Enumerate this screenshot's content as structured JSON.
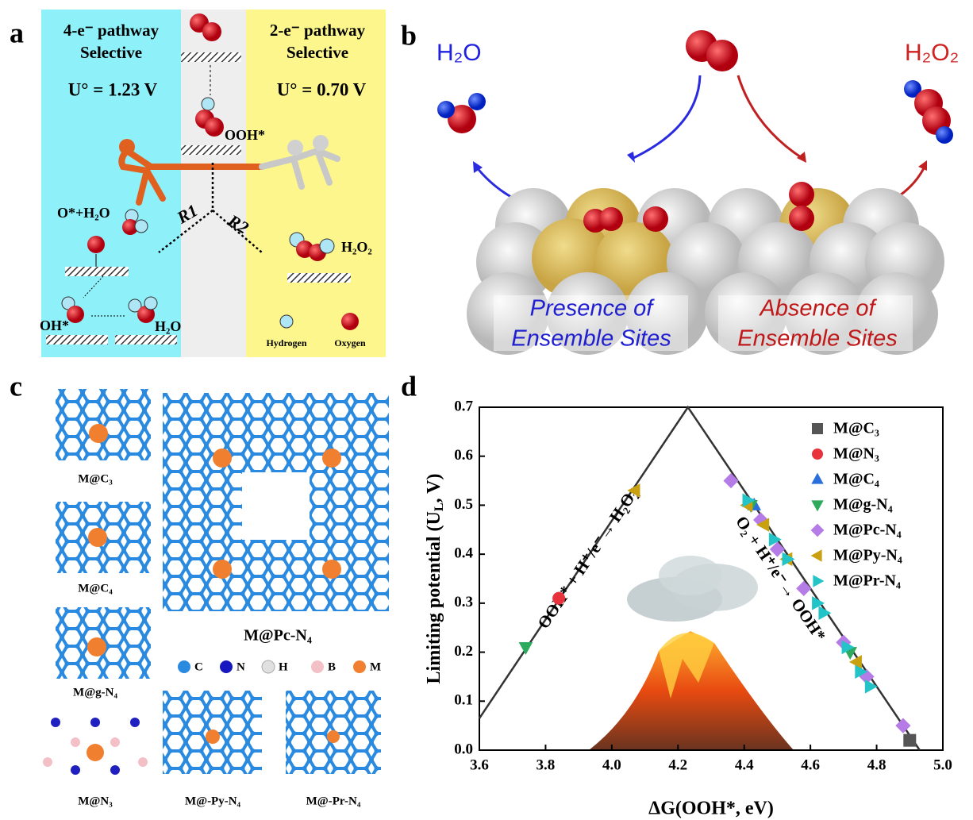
{
  "panel_a": {
    "letter": "a",
    "left_title": [
      "4-e⁻ pathway",
      "Selective"
    ],
    "left_potential": "U° = 1.23 V",
    "right_title": [
      "2-e⁻ pathway",
      "Selective"
    ],
    "right_potential": "U° = 0.70 V",
    "labels": [
      "OOH*",
      "O*+H₂O",
      "R1",
      "R2",
      "H₂O₂",
      "OH*",
      "H₂O"
    ],
    "legend": [
      "Hydrogen",
      "Oxygen"
    ]
  },
  "panel_b": {
    "letter": "b",
    "left_product": "H₂O",
    "right_product": "H₂O₂",
    "left_caption": [
      "Presence of",
      "Ensemble Sites"
    ],
    "right_caption": [
      "Absence of",
      "Ensemble Sites"
    ]
  },
  "panel_c": {
    "letter": "c",
    "structures": [
      "M@C₃",
      "M@C₄",
      "M@g-N₄",
      "M@N₃",
      "M@Pc-N₄",
      "M@-Py-N₄",
      "M@-Pr-N₄"
    ],
    "atoms": [
      "C",
      "N",
      "H",
      "B",
      "M"
    ]
  },
  "chart_data": {
    "type": "scatter",
    "letter": "d",
    "x_label": "ΔG(OOH*, eV)",
    "y_label": [
      "Limiting potential (U",
      "L",
      ", V)"
    ],
    "xlim": [
      3.6,
      5.0
    ],
    "ylim": [
      0,
      0.7
    ],
    "xticks": [
      3.6,
      3.8,
      {
        "value": 4,
        "label": "4.0"
      },
      4.2,
      4.4,
      4.6,
      4.8,
      {
        "value": 5,
        "label": "5.0"
      }
    ],
    "yticks": [
      {
        "value": 0,
        "label": "0.0"
      },
      0.1,
      0.2,
      0.3,
      0.4,
      0.5,
      0.6,
      0.7
    ],
    "volcano_line": {
      "x": [
        3.6,
        4.23,
        4.93
      ],
      "values": [
        0.065,
        0.7,
        0
      ]
    },
    "annotations": [
      "OOH* + H⁺/e⁻→ H₂O₂",
      "O₂ + H⁺/e⁻→ OOH*"
    ],
    "legend": "upper right",
    "series": [
      {
        "name": "M@C₃",
        "color": "#555555",
        "marker": "square",
        "x": [
          4.9
        ],
        "values": [
          0.02
        ]
      },
      {
        "name": "M@N₃",
        "color": "#e8323c",
        "marker": "circle",
        "x": [
          3.84
        ],
        "values": [
          0.31
        ]
      },
      {
        "name": "M@C₄",
        "color": "#2a6fdb",
        "marker": "triangle-up",
        "x": [
          4.43
        ],
        "values": [
          0.5
        ]
      },
      {
        "name": "M@g-N₄",
        "color": "#2eaa5c",
        "marker": "triangle-down",
        "x": [
          3.74,
          4.42,
          4.72
        ],
        "values": [
          0.21,
          0.5,
          0.2
        ]
      },
      {
        "name": "M@Pc-N₄",
        "color": "#b57be6",
        "marker": "diamond",
        "x": [
          4.36,
          4.45,
          4.5,
          4.58,
          4.7,
          4.77,
          4.88
        ],
        "values": [
          0.55,
          0.47,
          0.41,
          0.33,
          0.22,
          0.15,
          0.05
        ]
      },
      {
        "name": "M@Py-N₄",
        "color": "#c8a010",
        "marker": "triangle-left",
        "x": [
          4.07,
          4.41,
          4.46,
          4.53,
          4.74
        ],
        "values": [
          0.53,
          0.5,
          0.46,
          0.39,
          0.18
        ]
      },
      {
        "name": "M@Pr-N₄",
        "color": "#22c4c8",
        "marker": "triangle-right",
        "x": [
          4.41,
          4.49,
          4.53,
          4.62,
          4.64,
          4.71,
          4.75,
          4.78
        ],
        "values": [
          0.51,
          0.43,
          0.39,
          0.3,
          0.28,
          0.21,
          0.16,
          0.13
        ]
      }
    ]
  }
}
